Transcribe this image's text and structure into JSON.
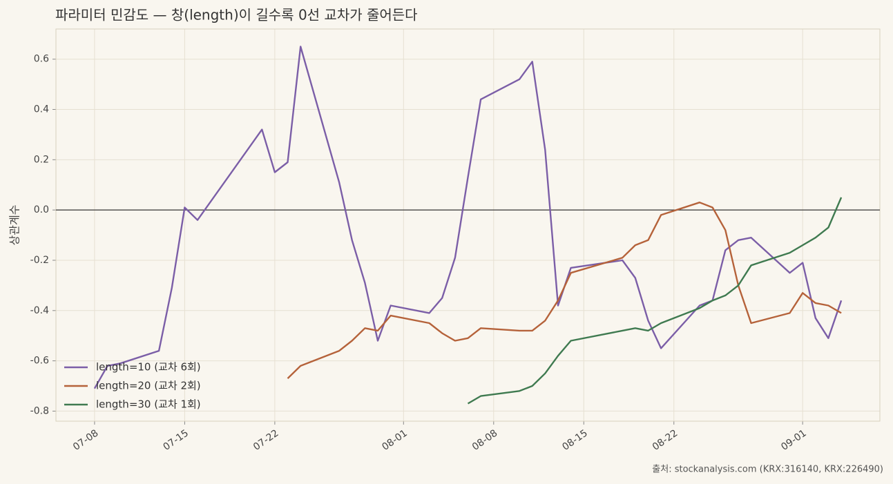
{
  "chart_data": {
    "type": "line",
    "title": "파라미터 민감도 — 창(length)이 길수록 0선 교차가 줄어든다",
    "ylabel": "상관계수",
    "source": "출처: stockanalysis.com (KRX:316140, KRX:226490)",
    "x": [
      "07-08",
      "07-09",
      "07-10",
      "07-13",
      "07-14",
      "07-15",
      "07-16",
      "07-21",
      "07-22",
      "07-23",
      "07-24",
      "07-27",
      "07-28",
      "07-29",
      "07-30",
      "07-31",
      "08-03",
      "08-04",
      "08-05",
      "08-06",
      "08-07",
      "08-10",
      "08-11",
      "08-12",
      "08-13",
      "08-14",
      "08-18",
      "08-19",
      "08-20",
      "08-21",
      "08-24",
      "08-25",
      "08-26",
      "08-27",
      "08-28",
      "08-31",
      "09-01",
      "09-02",
      "09-03",
      "09-04"
    ],
    "series": [
      {
        "name": "length=10 (교차 6회)",
        "color": "#7b5ea7",
        "values": [
          -0.71,
          -0.62,
          -0.61,
          -0.56,
          -0.31,
          0.01,
          -0.04,
          0.32,
          0.15,
          0.19,
          0.65,
          0.11,
          -0.12,
          -0.29,
          -0.52,
          -0.38,
          -0.41,
          -0.35,
          -0.19,
          0.13,
          0.44,
          0.52,
          0.59,
          0.24,
          -0.38,
          -0.23,
          -0.2,
          -0.27,
          -0.44,
          -0.55,
          -0.38,
          -0.36,
          -0.16,
          -0.12,
          -0.11,
          -0.25,
          -0.21,
          -0.43,
          -0.51,
          -0.36
        ]
      },
      {
        "name": "length=20 (교차 2회)",
        "color": "#b5623a",
        "values": [
          null,
          null,
          null,
          null,
          null,
          null,
          null,
          null,
          null,
          -0.67,
          -0.62,
          -0.56,
          -0.52,
          -0.47,
          -0.48,
          -0.42,
          -0.45,
          -0.49,
          -0.52,
          -0.51,
          -0.47,
          -0.48,
          -0.48,
          -0.44,
          -0.36,
          -0.25,
          -0.19,
          -0.14,
          -0.12,
          -0.02,
          0.03,
          0.01,
          -0.08,
          -0.3,
          -0.45,
          -0.41,
          -0.33,
          -0.37,
          -0.38,
          -0.41
        ]
      },
      {
        "name": "length=30 (교차 1회)",
        "color": "#3f7a50",
        "values": [
          null,
          null,
          null,
          null,
          null,
          null,
          null,
          null,
          null,
          null,
          null,
          null,
          null,
          null,
          null,
          null,
          null,
          null,
          null,
          -0.77,
          -0.74,
          -0.72,
          -0.7,
          -0.65,
          -0.58,
          -0.52,
          -0.48,
          -0.47,
          -0.48,
          -0.45,
          -0.39,
          -0.36,
          -0.34,
          -0.3,
          -0.22,
          -0.17,
          -0.14,
          -0.11,
          -0.07,
          0.05
        ]
      }
    ],
    "xlim": [
      "07-05",
      "09-07"
    ],
    "xticks": [
      "07-08",
      "07-15",
      "07-22",
      "08-01",
      "08-08",
      "08-15",
      "08-22",
      "09-01"
    ],
    "ylim": [
      -0.84,
      0.72
    ],
    "yticks": [
      -0.8,
      -0.6,
      -0.4,
      -0.2,
      {
        "value": 0,
        "label": "0.0"
      },
      0.2,
      0.4,
      0.6
    ],
    "hline": 0,
    "grid": true,
    "legend": "lower left"
  }
}
